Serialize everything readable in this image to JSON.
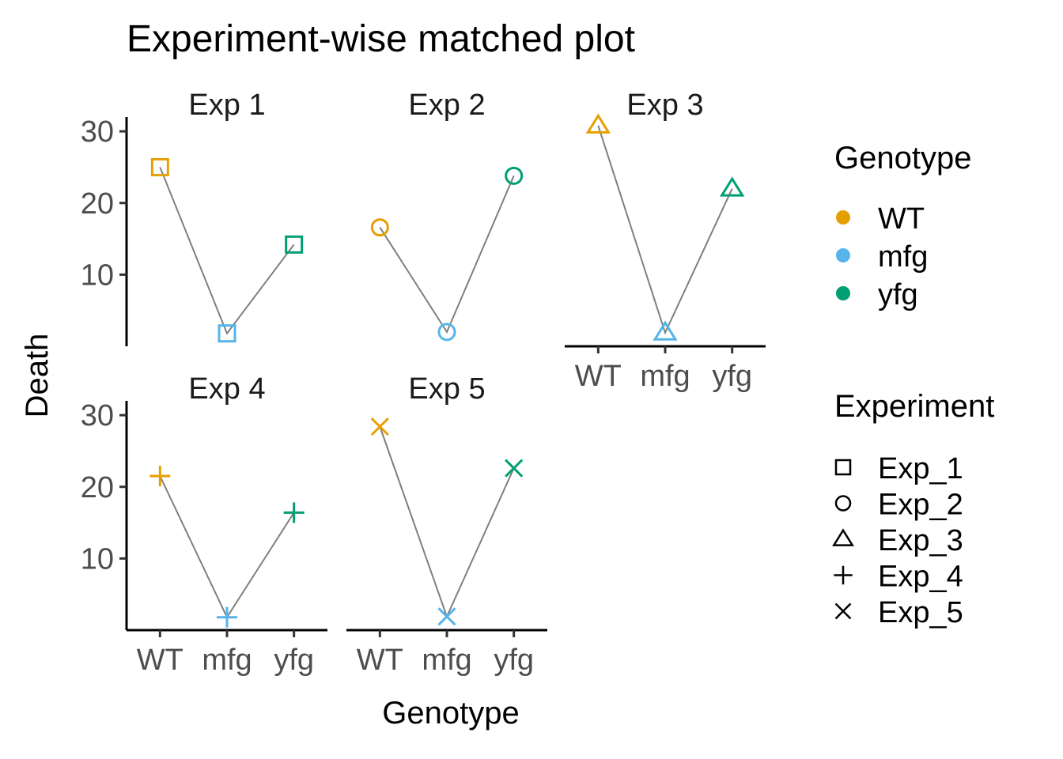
{
  "chart_data": {
    "type": "line",
    "title": "Experiment-wise matched plot",
    "xlabel": "Genotype",
    "ylabel": "Death",
    "categories": [
      "WT",
      "mfg",
      "yfg"
    ],
    "y_ticks": [
      "10",
      "20",
      "30"
    ],
    "ylim": [
      0,
      32
    ],
    "grid": false,
    "facets": [
      {
        "label": "Exp  1",
        "experiment": "Exp_1",
        "values": [
          25,
          1.8,
          14.2
        ]
      },
      {
        "label": "Exp  2",
        "experiment": "Exp_2",
        "values": [
          16.6,
          2.0,
          23.8
        ]
      },
      {
        "label": "Exp  3",
        "experiment": "Exp_3",
        "values": [
          30.8,
          1.9,
          22.0
        ]
      },
      {
        "label": "Exp  4",
        "experiment": "Exp_4",
        "values": [
          21.5,
          1.8,
          16.4
        ]
      },
      {
        "label": "Exp  5",
        "experiment": "Exp_5",
        "values": [
          28.4,
          1.9,
          22.6
        ]
      }
    ],
    "legend_position": "right",
    "legends": [
      {
        "title": "Genotype",
        "items": [
          {
            "label": "WT",
            "color": "#E69F00"
          },
          {
            "label": "mfg",
            "color": "#56B4E9"
          },
          {
            "label": "yfg",
            "color": "#009E73"
          }
        ]
      },
      {
        "title": "Experiment",
        "items": [
          {
            "label": "Exp_1",
            "shape": "square"
          },
          {
            "label": "Exp_2",
            "shape": "circle"
          },
          {
            "label": "Exp_3",
            "shape": "triangle"
          },
          {
            "label": "Exp_4",
            "shape": "plus"
          },
          {
            "label": "Exp_5",
            "shape": "cross"
          }
        ]
      }
    ],
    "line_color": "#7f7f7f"
  }
}
